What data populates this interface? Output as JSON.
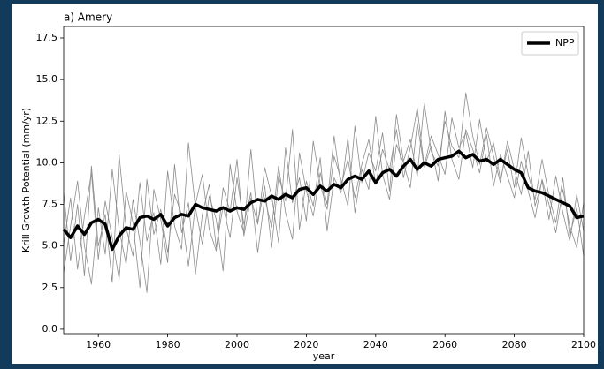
{
  "chart_data": {
    "type": "line",
    "title": "a) Amery",
    "xlabel": "year",
    "ylabel": "Krill Growth Potential (mm/yr)",
    "x": [
      1950,
      1952,
      1954,
      1956,
      1958,
      1960,
      1962,
      1964,
      1966,
      1968,
      1970,
      1972,
      1974,
      1976,
      1978,
      1980,
      1982,
      1984,
      1986,
      1988,
      1990,
      1992,
      1994,
      1996,
      1998,
      2000,
      2002,
      2004,
      2006,
      2008,
      2010,
      2012,
      2014,
      2016,
      2018,
      2020,
      2022,
      2024,
      2026,
      2028,
      2030,
      2032,
      2034,
      2036,
      2038,
      2040,
      2042,
      2044,
      2046,
      2048,
      2050,
      2052,
      2054,
      2056,
      2058,
      2060,
      2062,
      2064,
      2066,
      2068,
      2070,
      2072,
      2074,
      2076,
      2078,
      2080,
      2082,
      2084,
      2086,
      2088,
      2090,
      2092,
      2094,
      2096,
      2098,
      2100
    ],
    "series": [
      {
        "color": "#8c8c8c",
        "values": [
          8.2,
          4.1,
          7.5,
          3.2,
          9.8,
          5.0,
          6.9,
          2.8,
          10.5,
          6.1,
          4.4,
          8.8,
          5.3,
          7.0,
          3.9,
          9.5,
          6.2,
          4.8,
          11.2,
          7.3,
          5.1,
          8.0,
          6.6,
          3.5,
          9.9,
          7.1,
          5.8,
          10.8,
          6.4,
          8.6,
          4.9,
          9.2,
          7.7,
          12.0,
          6.0,
          8.9,
          7.4,
          10.3,
          5.9,
          9.1,
          8.2,
          11.5,
          7.0,
          9.6,
          8.4,
          12.8,
          9.3,
          7.8,
          11.1,
          10.0,
          8.5,
          12.4,
          9.7,
          11.0,
          8.9,
          13.1,
          10.2,
          9.0,
          12.0,
          10.8,
          9.4,
          11.7,
          8.6,
          10.5,
          9.2,
          7.9,
          10.1,
          8.3,
          6.7,
          9.0,
          7.5,
          5.8,
          8.4,
          6.2,
          4.9,
          7.6
        ]
      },
      {
        "color": "#8c8c8c",
        "values": [
          5.1,
          7.9,
          3.6,
          6.8,
          9.4,
          4.2,
          7.7,
          5.5,
          3.0,
          8.3,
          6.4,
          2.5,
          9.0,
          5.7,
          7.2,
          4.6,
          8.1,
          6.9,
          3.8,
          7.5,
          9.3,
          6.0,
          4.7,
          8.5,
          7.1,
          10.2,
          5.6,
          7.9,
          6.3,
          9.7,
          8.0,
          5.2,
          10.9,
          7.6,
          9.1,
          6.5,
          11.3,
          8.7,
          7.2,
          10.4,
          9.0,
          7.4,
          12.2,
          8.8,
          10.6,
          9.5,
          11.8,
          8.3,
          12.9,
          10.1,
          11.4,
          9.2,
          13.6,
          10.7,
          9.8,
          12.5,
          11.0,
          10.3,
          14.2,
          11.6,
          9.9,
          12.1,
          10.4,
          8.8,
          11.3,
          9.6,
          8.1,
          10.7,
          7.4,
          8.9,
          6.6,
          9.2,
          7.0,
          5.3,
          8.1,
          5.9
        ]
      },
      {
        "color": "#8c8c8c",
        "values": [
          3.4,
          6.2,
          8.9,
          5.0,
          2.7,
          7.3,
          4.5,
          9.6,
          6.0,
          3.9,
          7.8,
          5.3,
          2.2,
          8.4,
          6.6,
          4.0,
          9.9,
          5.8,
          7.6,
          3.3,
          6.9,
          8.7,
          4.9,
          7.4,
          5.5,
          9.1,
          6.3,
          8.2,
          4.6,
          7.9,
          6.1,
          9.8,
          7.0,
          5.4,
          10.6,
          8.3,
          6.8,
          9.4,
          7.5,
          11.6,
          8.6,
          10.2,
          7.9,
          9.9,
          11.4,
          8.7,
          10.8,
          9.6,
          12.0,
          9.1,
          10.9,
          13.3,
          9.8,
          11.6,
          10.5,
          9.3,
          12.7,
          10.9,
          11.8,
          9.7,
          12.6,
          10.1,
          11.2,
          9.0,
          10.8,
          8.5,
          11.5,
          9.3,
          7.8,
          10.2,
          8.0,
          6.4,
          9.1,
          5.6,
          7.3,
          4.4
        ]
      },
      {
        "name": "NPP",
        "color": "#000000",
        "values": [
          6.0,
          5.5,
          6.2,
          5.7,
          6.4,
          6.6,
          6.3,
          4.8,
          5.6,
          6.1,
          6.0,
          6.7,
          6.8,
          6.6,
          6.9,
          6.2,
          6.7,
          6.9,
          6.8,
          7.5,
          7.3,
          7.2,
          7.1,
          7.3,
          7.1,
          7.3,
          7.2,
          7.6,
          7.8,
          7.7,
          8.0,
          7.8,
          8.1,
          7.9,
          8.4,
          8.5,
          8.1,
          8.6,
          8.3,
          8.7,
          8.5,
          9.0,
          9.2,
          9.0,
          9.5,
          8.8,
          9.4,
          9.6,
          9.2,
          9.8,
          10.2,
          9.6,
          10.0,
          9.8,
          10.2,
          10.3,
          10.4,
          10.7,
          10.3,
          10.5,
          10.1,
          10.2,
          9.9,
          10.2,
          9.9,
          9.6,
          9.4,
          8.5,
          8.3,
          8.2,
          8.0,
          7.8,
          7.6,
          7.4,
          6.7,
          6.8
        ]
      }
    ],
    "xlim": [
      1950,
      2100
    ],
    "xticks": [
      1960,
      1980,
      2000,
      2020,
      2040,
      2060,
      2080,
      2100
    ],
    "ylim": [
      -0.27,
      18.19
    ],
    "yticks": [
      {
        "value": 0,
        "label": "0.0"
      },
      2.5,
      {
        "value": 5,
        "label": "5.0"
      },
      7.5,
      {
        "value": 10,
        "label": "10.0"
      },
      12.5,
      {
        "value": 15,
        "label": "15.0"
      },
      17.5
    ],
    "legend": "upper right"
  }
}
